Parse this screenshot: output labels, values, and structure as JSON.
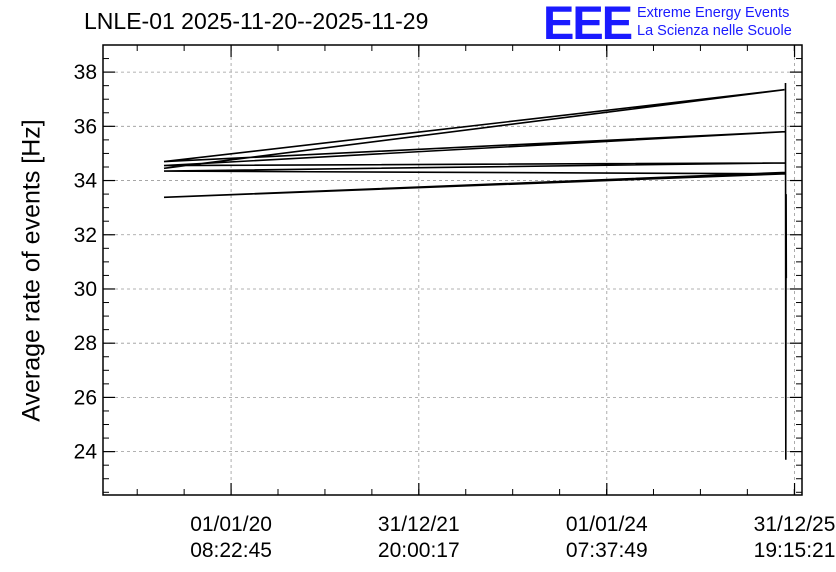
{
  "chart_data": {
    "type": "line",
    "title": "LNLE-01 2025-11-20--2025-11-29",
    "ylabel": "Average rate of events [Hz]",
    "xlabel": "",
    "ylim": [
      22.4,
      39.0
    ],
    "yticks": [
      24,
      26,
      28,
      30,
      32,
      34,
      36,
      38
    ],
    "xticks": [
      {
        "date": "01/01/20",
        "time": "08:22:45"
      },
      {
        "date": "31/12/21",
        "time": "20:00:17"
      },
      {
        "date": "01/01/24",
        "time": "07:37:49"
      },
      {
        "date": "31/12/25",
        "time": "19:15:21"
      }
    ],
    "xlim": [
      "2018-08-21",
      "2026-01-29"
    ],
    "grid": true,
    "series": [
      {
        "values": [
          {
            "x": "2019-04-15",
            "y": 34.45
          },
          {
            "x": "2025-11-22",
            "y": 37.35
          },
          {
            "x": "2019-04-15",
            "y": 34.7
          },
          {
            "x": "2025-11-23",
            "y": 35.8
          },
          {
            "x": "2019-04-15",
            "y": 34.55
          },
          {
            "x": "2025-11-24",
            "y": 34.65
          },
          {
            "x": "2019-04-15",
            "y": 34.35
          },
          {
            "x": "2025-11-25",
            "y": 34.25
          },
          {
            "x": "2019-04-15",
            "y": 33.38
          },
          {
            "x": "2025-11-26",
            "y": 34.3
          },
          {
            "x": "2025-11-26",
            "y": 37.6
          },
          {
            "x": "2025-11-27",
            "y": 23.7
          },
          {
            "x": "2025-11-28",
            "y": 33.5
          },
          {
            "x": "2025-11-29",
            "y": 30.4
          }
        ]
      }
    ]
  },
  "logo": {
    "mark": "EEE",
    "line1": "Extreme Energy Events",
    "line2": "La Scienza nelle Scuole"
  }
}
